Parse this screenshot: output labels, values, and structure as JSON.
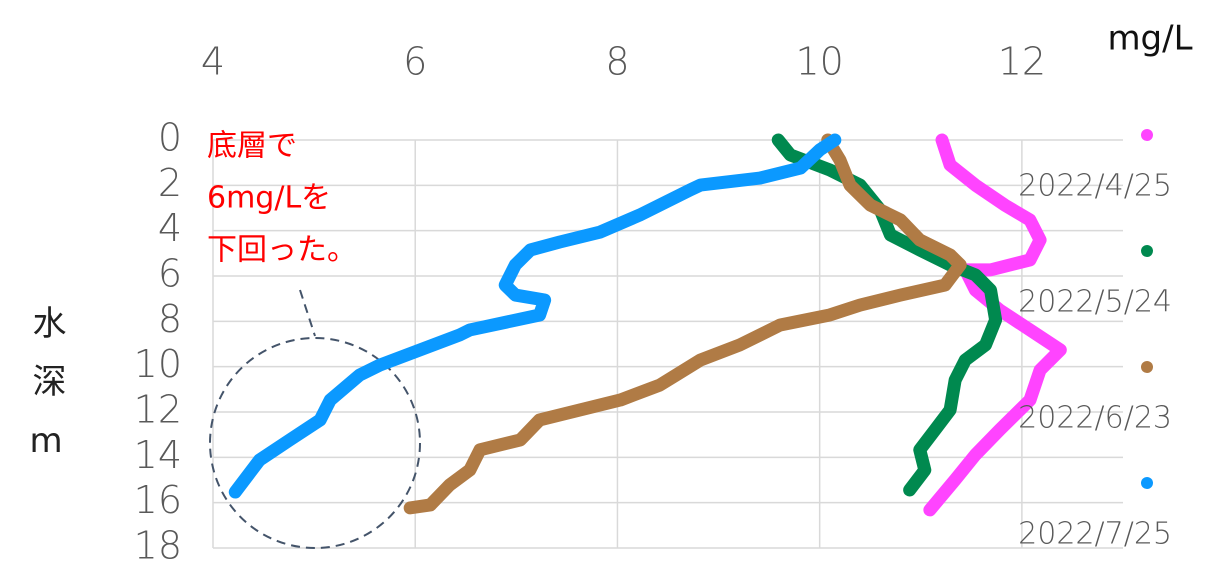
{
  "chart_data": {
    "type": "line",
    "xlabel": "mg/L",
    "ylabel": "水深m",
    "annotation": [
      "底層で",
      "6mg/Lを",
      "下回った。"
    ],
    "xlim": [
      4,
      13
    ],
    "xticks": [
      4,
      6,
      8,
      10,
      12
    ],
    "ylim": [
      0,
      18
    ],
    "yticks": [
      0,
      2,
      4,
      6,
      8,
      10,
      12,
      14,
      16,
      18
    ],
    "y_reversed": true,
    "x_axis_position": "top",
    "grid": true,
    "legend": "right",
    "series": [
      {
        "name": "2022/4/25",
        "color": "#ff44ff",
        "x": [
          11.21,
          11.29,
          11.54,
          11.83,
          12.08,
          12.18,
          12.08,
          11.69,
          11.44,
          11.54,
          11.78,
          12.08,
          12.38,
          12.18,
          12.08,
          11.78,
          11.54,
          11.34,
          11.09
        ],
        "values": [
          0,
          1.1,
          1.99,
          2.87,
          3.53,
          4.41,
          5.29,
          5.73,
          5.73,
          6.62,
          7.5,
          8.38,
          9.26,
          10.15,
          11.47,
          12.79,
          13.89,
          14.99,
          16.32
        ]
      },
      {
        "name": "2022/5/24",
        "color": "#00894f",
        "x": [
          9.59,
          9.71,
          10.1,
          10.4,
          10.6,
          10.7,
          10.99,
          11.29,
          11.54,
          11.69,
          11.74,
          11.64,
          11.44,
          11.34,
          11.29,
          11.14,
          10.99,
          11.04,
          10.89
        ],
        "values": [
          0,
          0.66,
          1.32,
          1.99,
          3.09,
          4.19,
          4.85,
          5.51,
          5.95,
          6.62,
          7.94,
          9.04,
          9.71,
          10.59,
          11.91,
          12.79,
          13.67,
          14.56,
          15.44
        ]
      },
      {
        "name": "2022/6/23",
        "color": "#b07b45",
        "x": [
          10.08,
          10.2,
          10.3,
          10.5,
          10.8,
          10.99,
          11.29,
          11.39,
          11.24,
          10.8,
          10.4,
          10.1,
          9.61,
          9.21,
          8.82,
          8.42,
          8.03,
          7.63,
          7.23,
          7.04,
          6.64,
          6.54,
          6.34,
          6.15,
          5.95
        ],
        "values": [
          0,
          0.88,
          1.99,
          2.87,
          3.53,
          4.41,
          5.07,
          5.51,
          6.4,
          6.84,
          7.28,
          7.72,
          8.16,
          9.04,
          9.71,
          10.81,
          11.47,
          11.91,
          12.35,
          13.23,
          13.67,
          14.56,
          15.22,
          16.1,
          16.23
        ]
      },
      {
        "name": "2022/7/25",
        "color": "#0b99ff",
        "x": [
          10.15,
          10.0,
          9.81,
          9.41,
          8.82,
          8.72,
          8.22,
          7.83,
          7.43,
          7.14,
          6.99,
          6.89,
          6.99,
          7.28,
          7.23,
          6.54,
          6.44,
          5.65,
          5.45,
          5.16,
          5.06,
          4.76,
          4.46,
          4.22
        ],
        "values": [
          0,
          0.44,
          1.24,
          1.68,
          1.99,
          2.2,
          3.31,
          4.06,
          4.5,
          4.85,
          5.51,
          6.4,
          6.84,
          7.06,
          7.72,
          8.38,
          8.6,
          9.93,
          10.37,
          11.47,
          12.35,
          13.23,
          14.12,
          15.53
        ]
      }
    ]
  }
}
